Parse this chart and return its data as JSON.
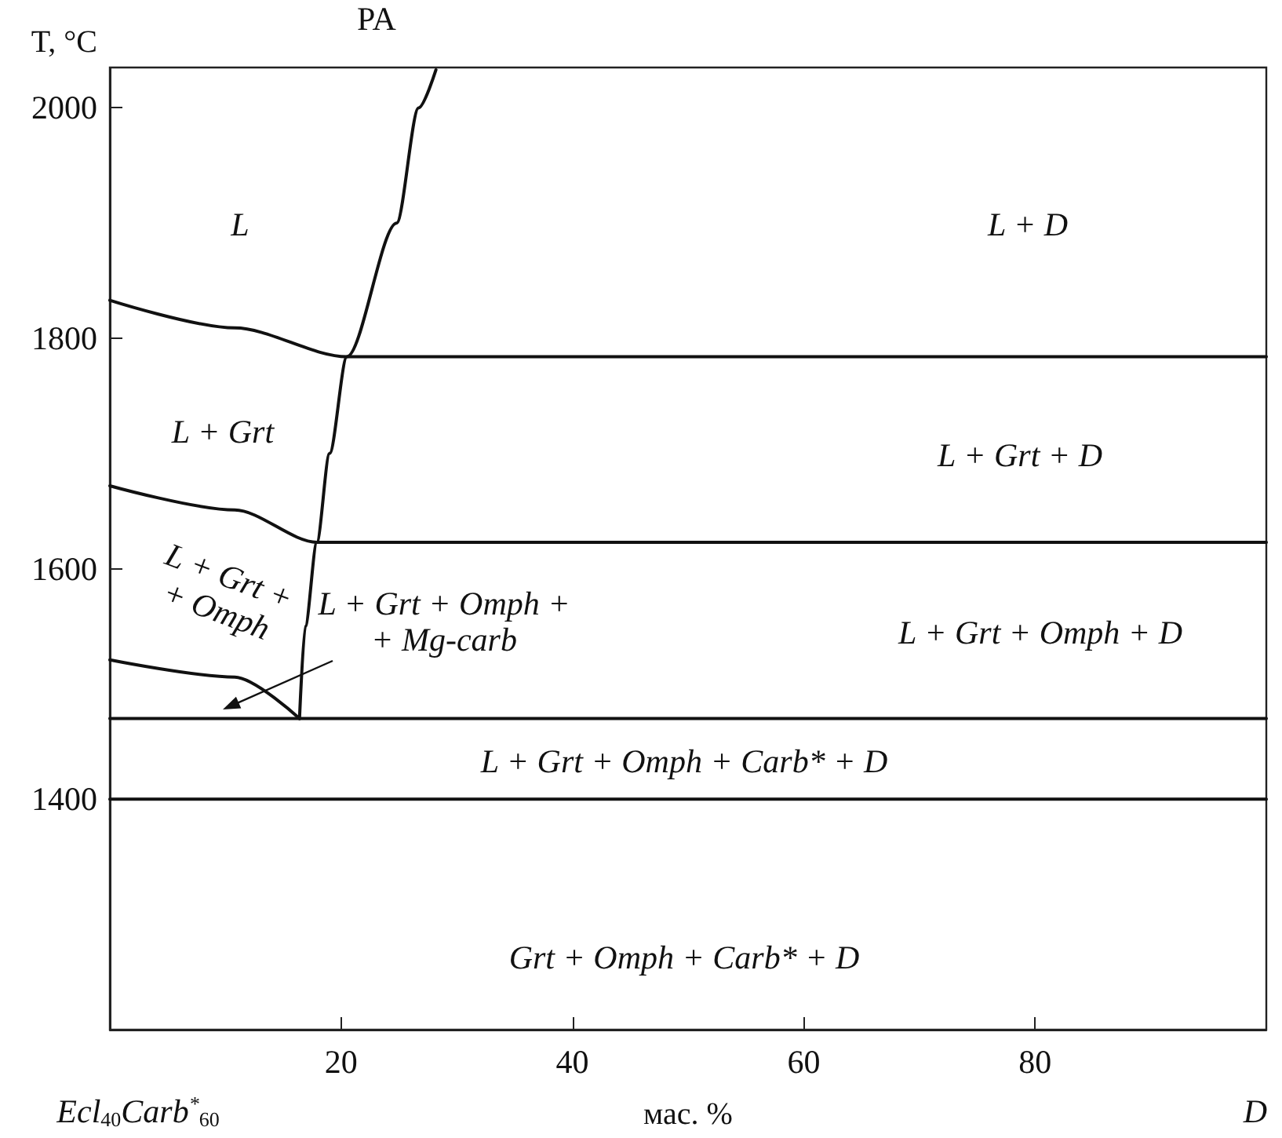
{
  "chart_data": {
    "type": "line",
    "xlabel": "мас. %",
    "ylabel": "T, °C",
    "xlim": [
      0,
      100
    ],
    "ylim": [
      1200,
      2035
    ],
    "xticks": [
      20,
      40,
      60,
      80
    ],
    "yticks": [
      1400,
      1600,
      1800,
      2000
    ],
    "grid": false,
    "marker": "none",
    "line_style": "solid",
    "series": [
      {
        "color": "#111111",
        "x": [
          16.4,
          16.9,
          17.9,
          19.0,
          20.5,
          24.8,
          26.7,
          28.2
        ],
        "values": [
          1470,
          1550,
          1623,
          1700,
          1784,
          1900,
          2000,
          2033
        ]
      },
      {
        "color": "#111111",
        "x": [
          0,
          10.8,
          20.5,
          100
        ],
        "values": [
          1833,
          1809,
          1784,
          1784
        ]
      },
      {
        "color": "#111111",
        "x": [
          0,
          10.8,
          17.9,
          100
        ],
        "values": [
          1672,
          1651,
          1623,
          1623
        ]
      },
      {
        "color": "#111111",
        "x": [
          0,
          10.8,
          16.4
        ],
        "values": [
          1521,
          1506,
          1470
        ]
      },
      {
        "color": "#111111",
        "x": [
          0,
          100
        ],
        "values": [
          1470,
          1470
        ]
      },
      {
        "color": "#111111",
        "x": [
          0,
          100
        ],
        "values": [
          1400,
          1400
        ]
      }
    ],
    "annotations": [
      "PA",
      "L",
      "L + D",
      "L + Grt",
      "L + Grt + D",
      "L + Grt +\n+ Omph",
      "L + Grt + Omph + D",
      "L + Grt + Omph + Carb* + D",
      "Grt + Omph + Carb* + D",
      "L + Grt + Omph +\n+ Mg-carb",
      "Ecl$_{40}$Carb$^{*}$$_{60}$",
      "D"
    ]
  }
}
